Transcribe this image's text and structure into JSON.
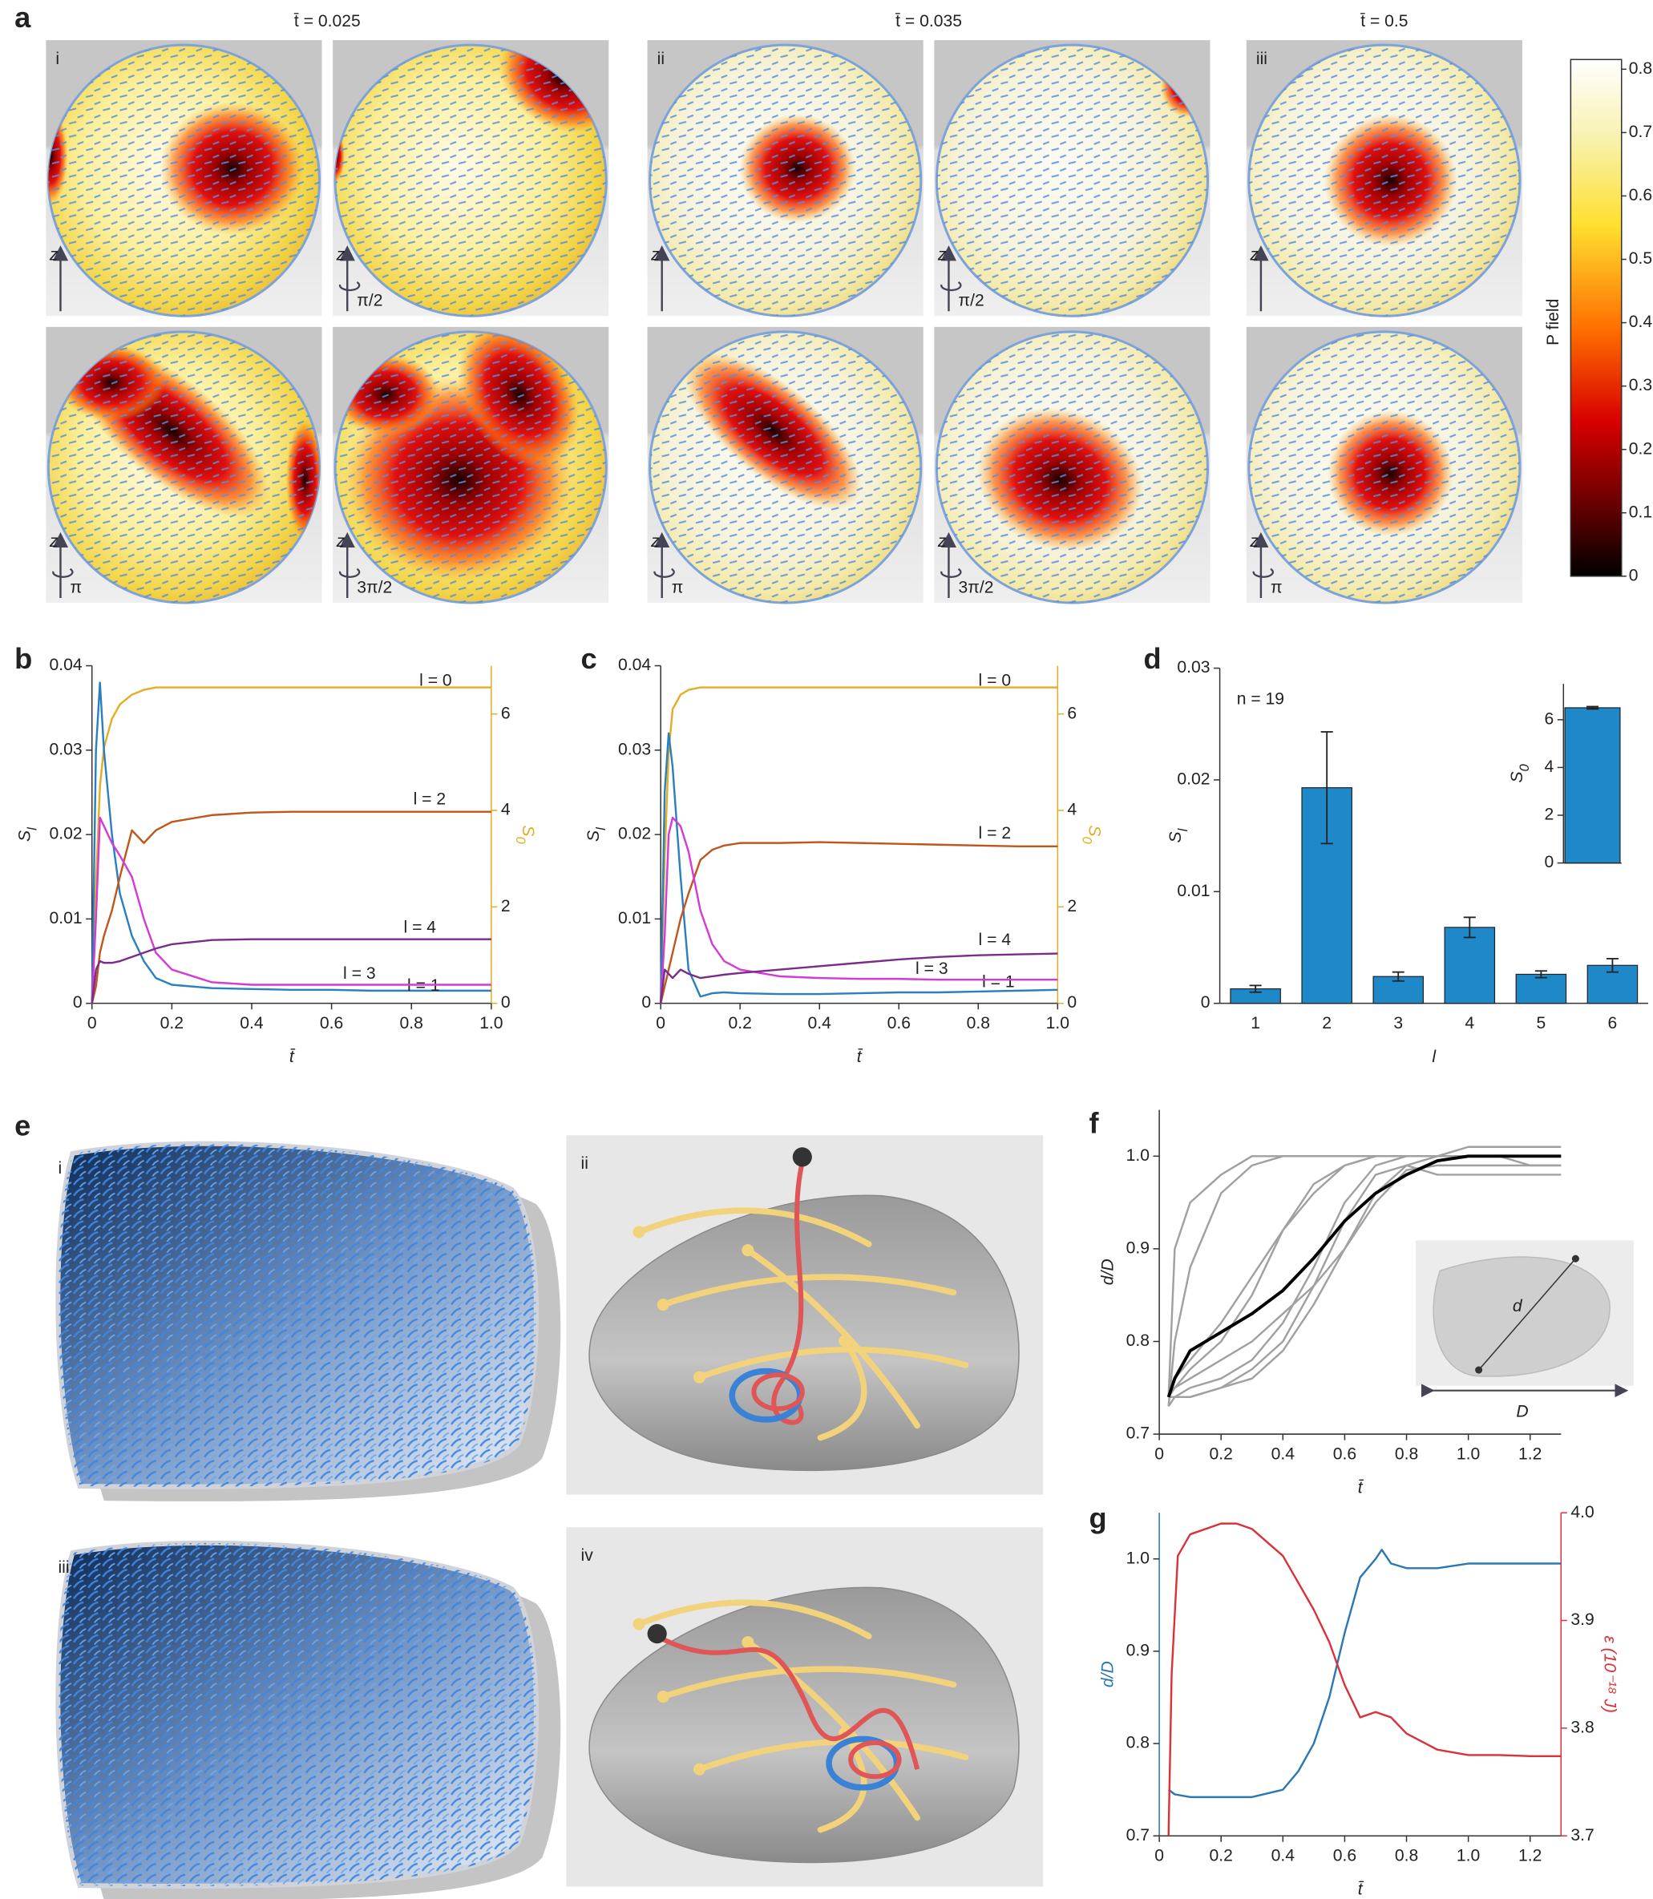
{
  "panel_labels": [
    "a",
    "b",
    "c",
    "d",
    "e",
    "f",
    "g"
  ],
  "panel_a": {
    "groups": [
      {
        "title": "t̄ = 0.025",
        "label": "i",
        "views": [
          {
            "axis": "z"
          },
          {
            "axis": "z",
            "rotation": "π/2"
          },
          {
            "axis": "z",
            "rotation": "π"
          },
          {
            "axis": "z",
            "rotation": "3π/2"
          }
        ]
      },
      {
        "title": "t̄ = 0.035",
        "label": "ii",
        "views": [
          {
            "axis": "z"
          },
          {
            "axis": "z",
            "rotation": "π/2"
          },
          {
            "axis": "z",
            "rotation": "π"
          },
          {
            "axis": "z",
            "rotation": "3π/2"
          }
        ]
      },
      {
        "title": "t̄ = 0.5",
        "label": "iii",
        "views": [
          {
            "axis": "z"
          },
          {
            "axis": "z",
            "rotation": "π"
          }
        ]
      }
    ],
    "colorbar": {
      "label": "P field",
      "lim": [
        0,
        0.8
      ],
      "ticks": [
        0,
        0.1,
        0.2,
        0.3,
        0.4,
        0.5,
        0.6,
        0.7,
        0.8
      ]
    }
  },
  "panel_e": {
    "labels": [
      "i",
      "ii",
      "iii",
      "iv"
    ]
  },
  "chart_data": [
    {
      "type": "line",
      "x_label": "t̄",
      "y_label": "S",
      "y_label_sub": "l",
      "y2_label": "S",
      "y2_label_sub": "0",
      "xlim": [
        0,
        1
      ],
      "xticks": [
        0,
        0.2,
        0.4,
        0.6,
        0.8,
        {
          "value": 1,
          "label": "1.0"
        }
      ],
      "ylim": [
        0,
        0.04
      ],
      "yticks": [
        0,
        0.01,
        0.02,
        0.03,
        0.04
      ],
      "y2lim": [
        0,
        7
      ],
      "y2ticks": [
        0,
        2,
        4,
        6
      ],
      "x": [
        0,
        0.01,
        0.02,
        0.03,
        0.05,
        0.07,
        0.1,
        0.13,
        0.16,
        0.2,
        0.3,
        0.4,
        0.5,
        0.6,
        0.7,
        0.8,
        0.9,
        1
      ],
      "series": [
        {
          "name": "l = 0",
          "color": "#e3ad25",
          "axis": "y2",
          "values": [
            0,
            2.5,
            4.5,
            5.3,
            5.9,
            6.2,
            6.4,
            6.5,
            6.55,
            6.55,
            6.55,
            6.55,
            6.55,
            6.55,
            6.55,
            6.55,
            6.55,
            6.55
          ]
        },
        {
          "name": "l = 1",
          "color": "#2a7fbf",
          "values": [
            0,
            0.03,
            0.038,
            0.03,
            0.02,
            0.013,
            0.008,
            0.005,
            0.003,
            0.0022,
            0.0018,
            0.0017,
            0.0016,
            0.0016,
            0.0015,
            0.0015,
            0.0015,
            0.0015
          ]
        },
        {
          "name": "l = 2",
          "color": "#c0561c",
          "values": [
            0,
            0.002,
            0.006,
            0.008,
            0.011,
            0.015,
            0.0205,
            0.019,
            0.0205,
            0.0215,
            0.0223,
            0.0226,
            0.0227,
            0.0227,
            0.0227,
            0.0227,
            0.0227,
            0.0227
          ]
        },
        {
          "name": "l = 3",
          "color": "#d63ad6",
          "values": [
            0,
            0.01,
            0.022,
            0.021,
            0.019,
            0.0175,
            0.015,
            0.01,
            0.006,
            0.004,
            0.0025,
            0.0022,
            0.0022,
            0.0022,
            0.0022,
            0.0022,
            0.0022,
            0.0022
          ]
        },
        {
          "name": "l = 4",
          "color": "#7a2c8a",
          "values": [
            0,
            0.004,
            0.005,
            0.0048,
            0.0048,
            0.005,
            0.0055,
            0.006,
            0.0065,
            0.007,
            0.0075,
            0.0076,
            0.0076,
            0.0076,
            0.0076,
            0.0076,
            0.0076,
            0.0076
          ]
        }
      ]
    },
    {
      "type": "line",
      "x_label": "t̄",
      "y_label": "S",
      "y_label_sub": "l",
      "y2_label": "S",
      "y2_label_sub": "0",
      "xlim": [
        0,
        1
      ],
      "xticks": [
        0,
        0.2,
        0.4,
        0.6,
        0.8,
        {
          "value": 1,
          "label": "1.0"
        }
      ],
      "ylim": [
        0,
        0.04
      ],
      "yticks": [
        0,
        0.01,
        0.02,
        0.03,
        0.04
      ],
      "y2lim": [
        0,
        7
      ],
      "y2ticks": [
        0,
        2,
        4,
        6
      ],
      "x": [
        0,
        0.01,
        0.02,
        0.03,
        0.05,
        0.07,
        0.1,
        0.13,
        0.16,
        0.2,
        0.3,
        0.4,
        0.5,
        0.6,
        0.7,
        0.8,
        0.9,
        1
      ],
      "series": [
        {
          "name": "l = 0",
          "color": "#e3ad25",
          "axis": "y2",
          "values": [
            0,
            3,
            5.2,
            6.1,
            6.4,
            6.5,
            6.55,
            6.55,
            6.55,
            6.55,
            6.55,
            6.55,
            6.55,
            6.55,
            6.55,
            6.55,
            6.55,
            6.55
          ]
        },
        {
          "name": "l = 1",
          "color": "#2a7fbf",
          "values": [
            0,
            0.025,
            0.032,
            0.028,
            0.015,
            0.004,
            0.0008,
            0.0012,
            0.0013,
            0.0012,
            0.0011,
            0.0011,
            0.0012,
            0.0013,
            0.0013,
            0.0014,
            0.0015,
            0.0016
          ]
        },
        {
          "name": "l = 2",
          "color": "#c0561c",
          "values": [
            0,
            0.002,
            0.004,
            0.006,
            0.01,
            0.013,
            0.017,
            0.0182,
            0.0187,
            0.019,
            0.019,
            0.0191,
            0.019,
            0.0189,
            0.0188,
            0.0187,
            0.0186,
            0.0186
          ]
        },
        {
          "name": "l = 3",
          "color": "#d63ad6",
          "values": [
            0,
            0.008,
            0.02,
            0.022,
            0.021,
            0.018,
            0.011,
            0.007,
            0.005,
            0.004,
            0.0032,
            0.003,
            0.0029,
            0.0029,
            0.0028,
            0.0028,
            0.0028,
            0.0028
          ]
        },
        {
          "name": "l = 4",
          "color": "#7a2c8a",
          "values": [
            0,
            0.004,
            0.0035,
            0.003,
            0.004,
            0.0035,
            0.003,
            0.0032,
            0.0034,
            0.0036,
            0.004,
            0.0044,
            0.0048,
            0.0052,
            0.0055,
            0.0057,
            0.0058,
            0.0059
          ]
        }
      ]
    },
    {
      "type": "bar",
      "x_label": "l",
      "y_label": "S",
      "y_label_sub": "l",
      "annotation": "n = 19",
      "categories": [
        "1",
        "2",
        "3",
        "4",
        "5",
        "6"
      ],
      "values": [
        0.0013,
        0.0193,
        0.0024,
        0.0068,
        0.0026,
        0.0034
      ],
      "errors": [
        0.0003,
        0.005,
        0.0004,
        0.0009,
        0.0003,
        0.0006
      ],
      "color": "#1f88c9",
      "ylim": [
        0,
        0.03
      ],
      "yticks": [
        0,
        0.01,
        0.02,
        0.03
      ]
    },
    {
      "type": "bar",
      "y_label": "S",
      "y_label_sub": "0",
      "categories": [
        null
      ],
      "values": [
        6.5
      ],
      "errors": [
        0.05
      ],
      "color": "#1f88c9",
      "ylim": [
        0,
        7.5
      ],
      "yticks": [
        0,
        2,
        4,
        6
      ]
    },
    {
      "type": "line",
      "x_label": "t̄",
      "y_label": "d/D",
      "annotations": [
        "d",
        "D"
      ],
      "xlim": [
        0,
        1.3
      ],
      "xticks": [
        0,
        0.2,
        0.4,
        0.6,
        0.8,
        {
          "value": 1,
          "label": "1.0"
        },
        1.2
      ],
      "ylim": [
        0.7,
        1.05
      ],
      "yticks": [
        0.7,
        0.8,
        0.9,
        {
          "value": 1,
          "label": "1.0"
        }
      ],
      "x": [
        0.03,
        0.05,
        0.1,
        0.2,
        0.3,
        0.4,
        0.5,
        0.6,
        0.7,
        0.8,
        0.9,
        1,
        1.1,
        1.2,
        1.3
      ],
      "series": [
        {
          "color": "#a0a0a0",
          "values": [
            0.74,
            0.9,
            0.95,
            0.98,
            1,
            1,
            1,
            1,
            1,
            1,
            1,
            1,
            1,
            1,
            1
          ]
        },
        {
          "color": "#a0a0a0",
          "values": [
            0.73,
            0.8,
            0.88,
            0.96,
            0.99,
            1,
            1,
            1,
            1,
            1,
            1,
            1,
            1,
            0.99,
            0.99
          ]
        },
        {
          "color": "#a0a0a0",
          "values": [
            0.74,
            0.75,
            0.77,
            0.8,
            0.85,
            0.92,
            0.97,
            0.99,
            1,
            1,
            1,
            1,
            1,
            1,
            1
          ]
        },
        {
          "color": "#a0a0a0",
          "values": [
            0.74,
            0.74,
            0.75,
            0.76,
            0.78,
            0.82,
            0.88,
            0.95,
            0.99,
            1,
            1,
            1,
            1,
            1,
            1
          ]
        },
        {
          "color": "#a0a0a0",
          "values": [
            0.73,
            0.74,
            0.74,
            0.75,
            0.76,
            0.79,
            0.84,
            0.9,
            0.96,
            0.99,
            1,
            1,
            1,
            1,
            1
          ]
        },
        {
          "color": "#a0a0a0",
          "values": [
            0.74,
            0.75,
            0.76,
            0.78,
            0.8,
            0.83,
            0.86,
            0.9,
            0.95,
            0.985,
            0.99,
            0.99,
            0.99,
            0.99,
            0.99
          ]
        },
        {
          "color": "#a0a0a0",
          "values": [
            0.75,
            0.76,
            0.78,
            0.82,
            0.87,
            0.92,
            0.96,
            0.99,
            1,
            1,
            1,
            1.01,
            1.01,
            1.01,
            1.01
          ]
        },
        {
          "color": "#a0a0a0",
          "values": [
            0.74,
            0.74,
            0.74,
            0.75,
            0.77,
            0.8,
            0.86,
            0.93,
            0.98,
            0.99,
            0.98,
            0.98,
            0.98,
            0.98,
            0.98
          ]
        },
        {
          "color": "#000000",
          "values": [
            0.74,
            0.76,
            0.79,
            0.81,
            0.83,
            0.855,
            0.89,
            0.93,
            0.96,
            0.98,
            0.995,
            1,
            1,
            1,
            1
          ]
        }
      ]
    },
    {
      "type": "line",
      "x_label": "t̄",
      "y_label": "d/D",
      "y2_label": "ε (10⁻¹⁸ J)",
      "xlim": [
        0,
        1.3
      ],
      "xticks": [
        0,
        0.2,
        0.4,
        0.6,
        0.8,
        {
          "value": 1,
          "label": "1.0"
        },
        1.2
      ],
      "ylim": [
        0.7,
        1.05
      ],
      "yticks": [
        0.7,
        0.8,
        0.9,
        {
          "value": 1,
          "label": "1.0"
        }
      ],
      "y2lim": [
        3.7,
        4
      ],
      "y2ticks": [
        3.7,
        3.8,
        3.9,
        {
          "value": 4,
          "label": "4.0"
        }
      ],
      "series": [
        {
          "color": "#2a77b4",
          "x": [
            0.03,
            0.05,
            0.1,
            0.2,
            0.3,
            0.4,
            0.45,
            0.5,
            0.55,
            0.6,
            0.65,
            0.7,
            0.72,
            0.75,
            0.8,
            0.9,
            1,
            1.1,
            1.2,
            1.3
          ],
          "values": [
            0.75,
            0.745,
            0.742,
            0.742,
            0.742,
            0.75,
            0.77,
            0.8,
            0.85,
            0.92,
            0.98,
            1,
            1.01,
            0.995,
            0.99,
            0.99,
            0.995,
            0.995,
            0.995,
            0.995
          ]
        },
        {
          "color": "#d9323a",
          "axis": "y2",
          "x": [
            0.03,
            0.04,
            0.06,
            0.1,
            0.2,
            0.25,
            0.3,
            0.4,
            0.5,
            0.55,
            0.6,
            0.65,
            0.7,
            0.75,
            0.8,
            0.9,
            1,
            1.1,
            1.2,
            1.3
          ],
          "values": [
            3.7,
            3.85,
            3.96,
            3.98,
            3.99,
            3.99,
            3.985,
            3.96,
            3.91,
            3.88,
            3.84,
            3.81,
            3.815,
            3.81,
            3.795,
            3.78,
            3.775,
            3.775,
            3.774,
            3.774
          ]
        }
      ]
    }
  ]
}
